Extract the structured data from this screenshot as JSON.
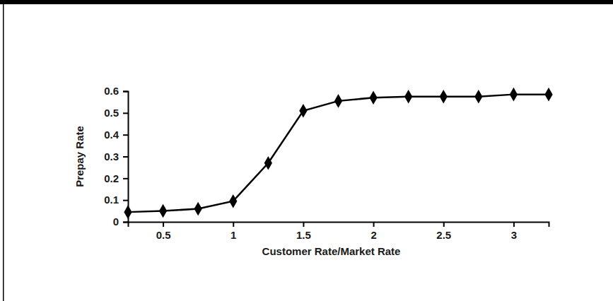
{
  "chart_data": {
    "type": "line",
    "x_label": "Customer Rate/Market Rate",
    "y_label": "Prepay Rate",
    "x": [
      0.25,
      0.5,
      0.75,
      1.0,
      1.25,
      1.5,
      1.75,
      2.0,
      2.25,
      2.5,
      2.75,
      3.0,
      3.25
    ],
    "values": [
      0.045,
      0.05,
      0.06,
      0.095,
      0.27,
      0.51,
      0.555,
      0.57,
      0.575,
      0.575,
      0.575,
      0.585,
      0.585
    ],
    "color": "#000000",
    "marker": "diamond",
    "line_style": "solid",
    "xlim": [
      0.25,
      3.25
    ],
    "xticks": [
      0.5,
      1,
      1.5,
      2,
      2.5,
      3
    ],
    "ylim": [
      0,
      0.6
    ],
    "yticks": [
      0,
      0.1,
      0.2,
      0.3,
      0.4,
      0.5,
      0.6
    ],
    "grid": false
  }
}
